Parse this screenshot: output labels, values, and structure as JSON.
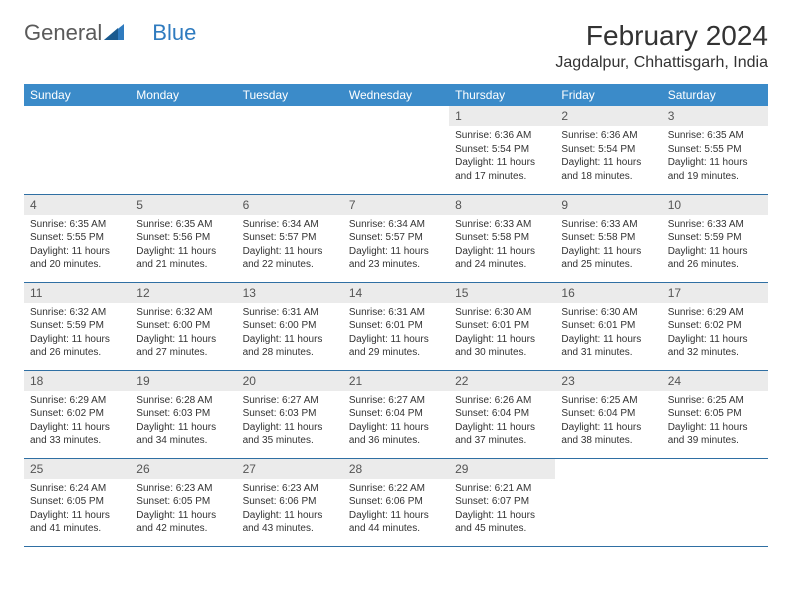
{
  "logo": {
    "text1": "General",
    "text2": "Blue"
  },
  "title": "February 2024",
  "location": "Jagdalpur, Chhattisgarh, India",
  "colors": {
    "header_bg": "#3b8bc9",
    "header_text": "#ffffff",
    "daynum_bg": "#ebebeb",
    "border": "#2f6fa3",
    "logo_blue": "#2f7bbf"
  },
  "weekdays": [
    "Sunday",
    "Monday",
    "Tuesday",
    "Wednesday",
    "Thursday",
    "Friday",
    "Saturday"
  ],
  "grid": [
    [
      null,
      null,
      null,
      null,
      {
        "n": "1",
        "sr": "6:36 AM",
        "ss": "5:54 PM",
        "dl": "11 hours and 17 minutes."
      },
      {
        "n": "2",
        "sr": "6:36 AM",
        "ss": "5:54 PM",
        "dl": "11 hours and 18 minutes."
      },
      {
        "n": "3",
        "sr": "6:35 AM",
        "ss": "5:55 PM",
        "dl": "11 hours and 19 minutes."
      }
    ],
    [
      {
        "n": "4",
        "sr": "6:35 AM",
        "ss": "5:55 PM",
        "dl": "11 hours and 20 minutes."
      },
      {
        "n": "5",
        "sr": "6:35 AM",
        "ss": "5:56 PM",
        "dl": "11 hours and 21 minutes."
      },
      {
        "n": "6",
        "sr": "6:34 AM",
        "ss": "5:57 PM",
        "dl": "11 hours and 22 minutes."
      },
      {
        "n": "7",
        "sr": "6:34 AM",
        "ss": "5:57 PM",
        "dl": "11 hours and 23 minutes."
      },
      {
        "n": "8",
        "sr": "6:33 AM",
        "ss": "5:58 PM",
        "dl": "11 hours and 24 minutes."
      },
      {
        "n": "9",
        "sr": "6:33 AM",
        "ss": "5:58 PM",
        "dl": "11 hours and 25 minutes."
      },
      {
        "n": "10",
        "sr": "6:33 AM",
        "ss": "5:59 PM",
        "dl": "11 hours and 26 minutes."
      }
    ],
    [
      {
        "n": "11",
        "sr": "6:32 AM",
        "ss": "5:59 PM",
        "dl": "11 hours and 26 minutes."
      },
      {
        "n": "12",
        "sr": "6:32 AM",
        "ss": "6:00 PM",
        "dl": "11 hours and 27 minutes."
      },
      {
        "n": "13",
        "sr": "6:31 AM",
        "ss": "6:00 PM",
        "dl": "11 hours and 28 minutes."
      },
      {
        "n": "14",
        "sr": "6:31 AM",
        "ss": "6:01 PM",
        "dl": "11 hours and 29 minutes."
      },
      {
        "n": "15",
        "sr": "6:30 AM",
        "ss": "6:01 PM",
        "dl": "11 hours and 30 minutes."
      },
      {
        "n": "16",
        "sr": "6:30 AM",
        "ss": "6:01 PM",
        "dl": "11 hours and 31 minutes."
      },
      {
        "n": "17",
        "sr": "6:29 AM",
        "ss": "6:02 PM",
        "dl": "11 hours and 32 minutes."
      }
    ],
    [
      {
        "n": "18",
        "sr": "6:29 AM",
        "ss": "6:02 PM",
        "dl": "11 hours and 33 minutes."
      },
      {
        "n": "19",
        "sr": "6:28 AM",
        "ss": "6:03 PM",
        "dl": "11 hours and 34 minutes."
      },
      {
        "n": "20",
        "sr": "6:27 AM",
        "ss": "6:03 PM",
        "dl": "11 hours and 35 minutes."
      },
      {
        "n": "21",
        "sr": "6:27 AM",
        "ss": "6:04 PM",
        "dl": "11 hours and 36 minutes."
      },
      {
        "n": "22",
        "sr": "6:26 AM",
        "ss": "6:04 PM",
        "dl": "11 hours and 37 minutes."
      },
      {
        "n": "23",
        "sr": "6:25 AM",
        "ss": "6:04 PM",
        "dl": "11 hours and 38 minutes."
      },
      {
        "n": "24",
        "sr": "6:25 AM",
        "ss": "6:05 PM",
        "dl": "11 hours and 39 minutes."
      }
    ],
    [
      {
        "n": "25",
        "sr": "6:24 AM",
        "ss": "6:05 PM",
        "dl": "11 hours and 41 minutes."
      },
      {
        "n": "26",
        "sr": "6:23 AM",
        "ss": "6:05 PM",
        "dl": "11 hours and 42 minutes."
      },
      {
        "n": "27",
        "sr": "6:23 AM",
        "ss": "6:06 PM",
        "dl": "11 hours and 43 minutes."
      },
      {
        "n": "28",
        "sr": "6:22 AM",
        "ss": "6:06 PM",
        "dl": "11 hours and 44 minutes."
      },
      {
        "n": "29",
        "sr": "6:21 AM",
        "ss": "6:07 PM",
        "dl": "11 hours and 45 minutes."
      },
      null,
      null
    ]
  ],
  "labels": {
    "sunrise": "Sunrise:",
    "sunset": "Sunset:",
    "daylight": "Daylight:"
  }
}
